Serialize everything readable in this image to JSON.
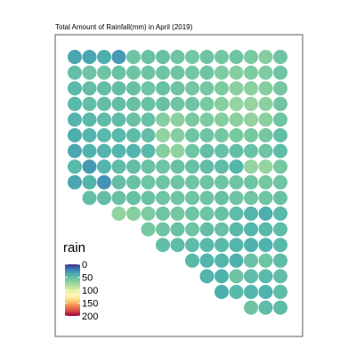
{
  "chart_data": {
    "type": "scatter",
    "title": "Total Amount of Rainfall(mm) in April (2019)",
    "xlabel": "",
    "ylabel": "",
    "grid": false,
    "legend_placement": "bottom-left",
    "colorbar": {
      "title": "rain",
      "domain": [
        0,
        200
      ],
      "ticks": [
        0,
        50,
        100,
        150,
        200
      ],
      "tick_labels": [
        "0",
        "50",
        "100",
        "150",
        "200"
      ],
      "palette": [
        "#3d2f8f",
        "#3b7fb8",
        "#4fb3ad",
        "#78c9a0",
        "#a9dba0",
        "#e1f1a0",
        "#fdf7b6",
        "#fdd47d",
        "#f68a4f",
        "#d94c47",
        "#a1003c"
      ]
    },
    "rows": [
      {
        "cols": [
          1,
          2,
          3,
          4,
          5,
          6,
          7,
          8,
          9,
          10,
          11,
          12,
          13,
          14,
          15
        ],
        "values": [
          35,
          35,
          38,
          30,
          55,
          52,
          52,
          55,
          58,
          55,
          58,
          55,
          60,
          65,
          55
        ]
      },
      {
        "cols": [
          1,
          2,
          3,
          4,
          5,
          6,
          7,
          8,
          9,
          10,
          11,
          12,
          13,
          14,
          15
        ],
        "values": [
          50,
          55,
          55,
          52,
          55,
          55,
          55,
          55,
          58,
          55,
          62,
          65,
          62,
          62,
          55
        ]
      },
      {
        "cols": [
          1,
          2,
          3,
          4,
          5,
          6,
          7,
          8,
          9,
          10,
          11,
          12,
          13,
          14,
          15
        ],
        "values": [
          45,
          50,
          50,
          50,
          52,
          55,
          52,
          55,
          58,
          58,
          62,
          68,
          68,
          65,
          58
        ]
      },
      {
        "cols": [
          1,
          2,
          3,
          4,
          5,
          6,
          7,
          8,
          9,
          10,
          11,
          12,
          13,
          14,
          15
        ],
        "values": [
          45,
          50,
          50,
          50,
          52,
          52,
          52,
          55,
          55,
          60,
          65,
          72,
          72,
          68,
          55
        ]
      },
      {
        "cols": [
          1,
          2,
          3,
          4,
          5,
          6,
          7,
          8,
          9,
          10,
          11,
          12,
          13,
          14,
          15
        ],
        "values": [
          42,
          45,
          48,
          48,
          52,
          52,
          65,
          68,
          60,
          62,
          65,
          68,
          70,
          68,
          55
        ]
      },
      {
        "cols": [
          1,
          2,
          3,
          4,
          5,
          6,
          7,
          8,
          9,
          10,
          11,
          12,
          13,
          14,
          15
        ],
        "values": [
          38,
          42,
          45,
          45,
          48,
          50,
          70,
          65,
          55,
          55,
          58,
          60,
          60,
          58,
          50
        ]
      },
      {
        "cols": [
          1,
          2,
          3,
          4,
          5,
          6,
          7,
          8,
          9,
          10,
          11,
          12,
          13,
          14,
          15
        ],
        "values": [
          35,
          40,
          42,
          42,
          42,
          45,
          65,
          70,
          55,
          50,
          52,
          50,
          52,
          55,
          48
        ]
      },
      {
        "cols": [
          1,
          2,
          3,
          4,
          5,
          6,
          7,
          8,
          9,
          10,
          11,
          12,
          13,
          14,
          15
        ],
        "values": [
          45,
          30,
          42,
          48,
          50,
          52,
          55,
          52,
          52,
          50,
          48,
          42,
          72,
          72,
          60
        ]
      },
      {
        "cols": [
          1,
          2,
          3,
          4,
          5,
          6,
          7,
          8,
          9,
          10,
          11,
          12,
          13,
          14,
          15
        ],
        "values": [
          35,
          42,
          28,
          50,
          52,
          55,
          55,
          55,
          55,
          55,
          55,
          55,
          55,
          58,
          55
        ]
      },
      {
        "cols": [
          2,
          3,
          4,
          5,
          6,
          7,
          8,
          9,
          10,
          11,
          12,
          13,
          14,
          15
        ],
        "values": [
          50,
          50,
          52,
          52,
          52,
          55,
          55,
          55,
          55,
          52,
          55,
          55,
          55,
          52
        ]
      },
      {
        "cols": [
          4,
          5,
          6,
          7,
          8,
          9,
          10,
          11,
          12,
          13,
          14,
          15
        ],
        "values": [
          70,
          65,
          62,
          55,
          58,
          55,
          55,
          52,
          48,
          42,
          38,
          45
        ]
      },
      {
        "cols": [
          6,
          7,
          8,
          9,
          10,
          11,
          12,
          13,
          14,
          15
        ],
        "values": [
          58,
          55,
          52,
          55,
          50,
          52,
          45,
          42,
          45,
          48
        ]
      },
      {
        "cols": [
          7,
          8,
          9,
          10,
          11,
          12,
          13,
          14,
          15
        ],
        "values": [
          50,
          48,
          48,
          45,
          45,
          42,
          40,
          40,
          45
        ]
      },
      {
        "cols": [
          9,
          10,
          11,
          12,
          13,
          14,
          15
        ],
        "values": [
          45,
          42,
          42,
          40,
          52,
          55,
          48
        ]
      },
      {
        "cols": [
          10,
          11,
          12,
          13,
          14,
          15
        ],
        "values": [
          42,
          40,
          55,
          48,
          45,
          50
        ]
      },
      {
        "cols": [
          11,
          12,
          13,
          14,
          15
        ],
        "values": [
          38,
          45,
          42,
          40,
          48
        ]
      },
      {
        "cols": [
          13,
          14,
          15
        ],
        "values": [
          55,
          48,
          48
        ]
      }
    ]
  }
}
